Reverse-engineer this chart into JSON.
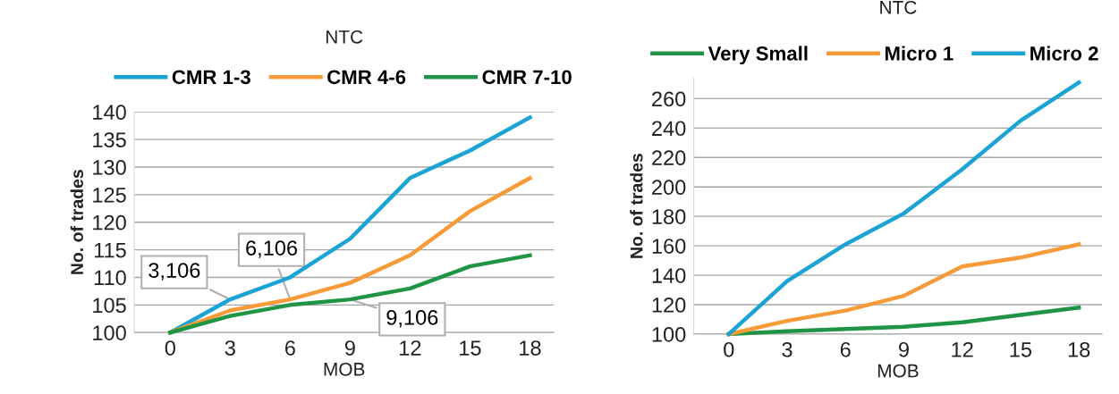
{
  "chart_data": [
    {
      "type": "line",
      "title": "NTC",
      "xlabel": "MOB",
      "ylabel": "No. of trades",
      "categories": [
        "0",
        "3",
        "6",
        "9",
        "12",
        "15",
        "18"
      ],
      "series": [
        {
          "name": "CMR 1-3",
          "color": "#1aa3d4",
          "values": [
            100,
            106,
            110,
            117,
            128,
            133,
            139
          ]
        },
        {
          "name": "CMR 4-6",
          "color": "#f79b38",
          "values": [
            100,
            104,
            106,
            109,
            114,
            122,
            128
          ]
        },
        {
          "name": "CMR 7-10",
          "color": "#1f9444",
          "values": [
            100,
            103,
            105,
            106,
            108,
            112,
            114
          ]
        }
      ],
      "ylim": [
        100,
        140
      ],
      "yticks": [
        100,
        105,
        110,
        115,
        120,
        125,
        130,
        135,
        140
      ],
      "grid": "y",
      "legend": "top",
      "line_style": "solid",
      "annotations": [
        {
          "text": "3,106",
          "x": "3",
          "y": 106
        },
        {
          "text": "6,106",
          "x": "6",
          "y": 106
        },
        {
          "text": "9,106",
          "x": "9",
          "y": 106
        }
      ]
    },
    {
      "type": "line",
      "title": "NTC",
      "xlabel": "MOB",
      "ylabel": "No. of trades",
      "categories": [
        "0",
        "3",
        "6",
        "9",
        "12",
        "15",
        "18"
      ],
      "series": [
        {
          "name": "Very Small",
          "color": "#1f9444",
          "values": [
            100,
            102,
            103.5,
            105,
            108,
            113,
            118
          ]
        },
        {
          "name": "Micro 1",
          "color": "#f79b38",
          "values": [
            100,
            109,
            116,
            126,
            146,
            152,
            161
          ]
        },
        {
          "name": "Micro 2",
          "color": "#1aa3d4",
          "values": [
            100,
            136,
            161,
            182,
            212,
            245,
            271
          ]
        }
      ],
      "ylim": [
        100,
        274
      ],
      "yticks": [
        100,
        120,
        140,
        160,
        180,
        200,
        220,
        240,
        260
      ],
      "grid": "y",
      "legend": "top",
      "line_style": "solid"
    }
  ]
}
